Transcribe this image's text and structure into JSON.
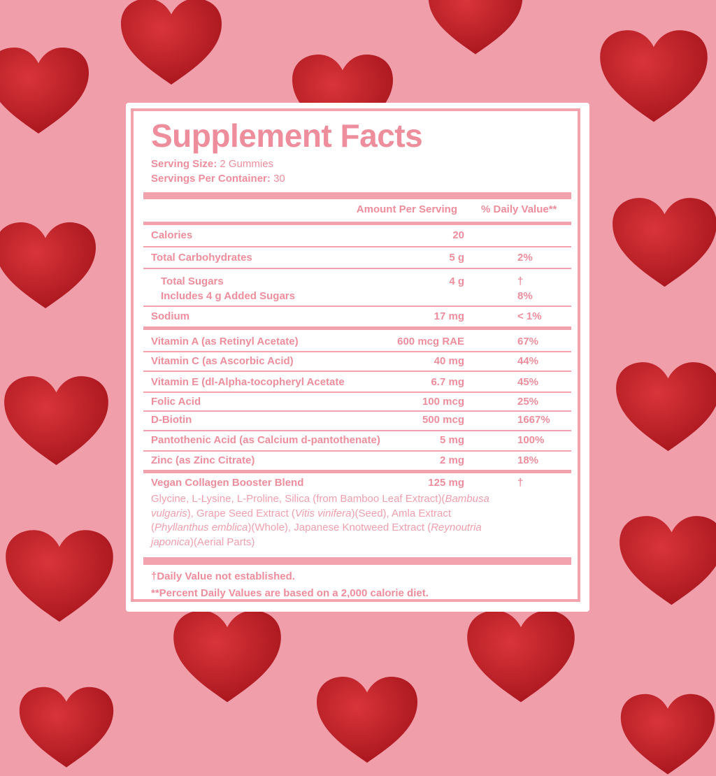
{
  "colors": {
    "background": "#ef9eaa",
    "accent": "#f2a3ae",
    "text": "#ee8e9c",
    "heart": "#c4252b"
  },
  "label": {
    "title": "Supplement Facts",
    "serving_size_label": "Serving Size:",
    "serving_size_value": "2 Gummies",
    "servings_label": "Servings Per Container:",
    "servings_value": "30",
    "header_amount": "Amount Per Serving",
    "header_dv": "% Daily Value**",
    "rows": [
      {
        "name": "Calories",
        "amount": "20",
        "dv": ""
      },
      {
        "name": "Total Carbohydrates",
        "amount": "5 g",
        "dv": "2%"
      },
      {
        "name": "Total Sugars",
        "amount": "4 g",
        "dv": "†"
      },
      {
        "name": "Includes 4 g Added Sugars",
        "amount": "",
        "dv": "8%"
      },
      {
        "name": "Sodium",
        "amount": "17 mg",
        "dv": "< 1%"
      },
      {
        "name": "Vitamin A (as Retinyl Acetate)",
        "amount": "600 mcg RAE",
        "dv": "67%"
      },
      {
        "name": "Vitamin C (as Ascorbic Acid)",
        "amount": "40 mg",
        "dv": "44%"
      },
      {
        "name": "Vitamin E (dl-Alpha-tocopheryl Acetate",
        "amount": "6.7 mg",
        "dv": "45%"
      },
      {
        "name": "Folic Acid",
        "amount": "100 mcg",
        "dv": "25%"
      },
      {
        "name": "D-Biotin",
        "amount": "500 mcg",
        "dv": "1667%"
      },
      {
        "name": "Pantothenic Acid (as Calcium d-pantothenate)",
        "amount": "5 mg",
        "dv": "100%"
      },
      {
        "name": "Zinc (as Zinc Citrate)",
        "amount": "2 mg",
        "dv": "18%"
      },
      {
        "name": "Vegan Collagen Booster Blend",
        "amount": "125 mg",
        "dv": "†"
      }
    ],
    "blend_ingredients": [
      {
        "text": "Glycine, L-Lysine, L-Proline, Silica (from Bamboo Leaf Extract)(",
        "italic": false
      },
      {
        "text": "Bambusa vulgaris",
        "italic": true
      },
      {
        "text": "), Grape Seed Extract (",
        "italic": false
      },
      {
        "text": "Vitis vinifera",
        "italic": true
      },
      {
        "text": ")(Seed), Amla Extract (",
        "italic": false
      },
      {
        "text": "Phyllanthus emblica",
        "italic": true
      },
      {
        "text": ")(Whole), Japanese Knotweed Extract (",
        "italic": false
      },
      {
        "text": "Reynoutria japonica",
        "italic": true
      },
      {
        "text": ")(Aerial Parts)",
        "italic": false
      }
    ],
    "footnote_1": "†Daily Value not established.",
    "footnote_2": "**Percent Daily Values are based on a 2,000 calorie diet."
  }
}
